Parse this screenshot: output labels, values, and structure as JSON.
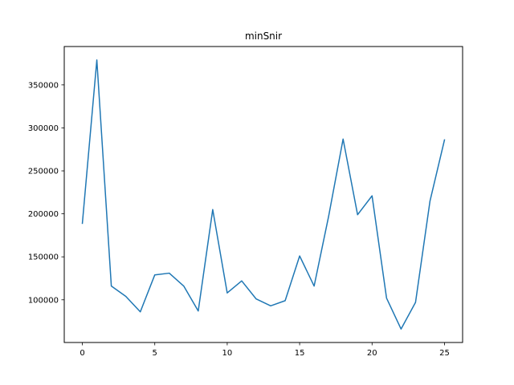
{
  "chart_data": {
    "type": "line",
    "title": "minSnir",
    "xlabel": "",
    "ylabel": "",
    "x": [
      0,
      1,
      2,
      3,
      4,
      5,
      6,
      7,
      8,
      9,
      10,
      11,
      12,
      13,
      14,
      15,
      16,
      17,
      18,
      19,
      20,
      21,
      22,
      23,
      24,
      25
    ],
    "series": [
      {
        "values": [
          189000,
          379000,
          116000,
          104000,
          86000,
          129000,
          131000,
          116000,
          87000,
          205000,
          108000,
          122000,
          101000,
          93000,
          99000,
          151000,
          116000,
          197000,
          287000,
          199000,
          221000,
          102000,
          66000,
          97000,
          215000,
          286000
        ],
        "color": "#1f77b4"
      }
    ],
    "xlim": [
      -1.25,
      26.25
    ],
    "ylim": [
      50350,
      394650
    ],
    "xticks": [
      0,
      5,
      10,
      15,
      20,
      25
    ],
    "xtick_labels": [
      "0",
      "5",
      "10",
      "15",
      "20",
      "25"
    ],
    "yticks": [
      100000,
      150000,
      200000,
      250000,
      300000,
      350000
    ],
    "ytick_labels": [
      "100000",
      "150000",
      "200000",
      "250000",
      "300000",
      "350000"
    ],
    "grid": false,
    "legend": false
  }
}
